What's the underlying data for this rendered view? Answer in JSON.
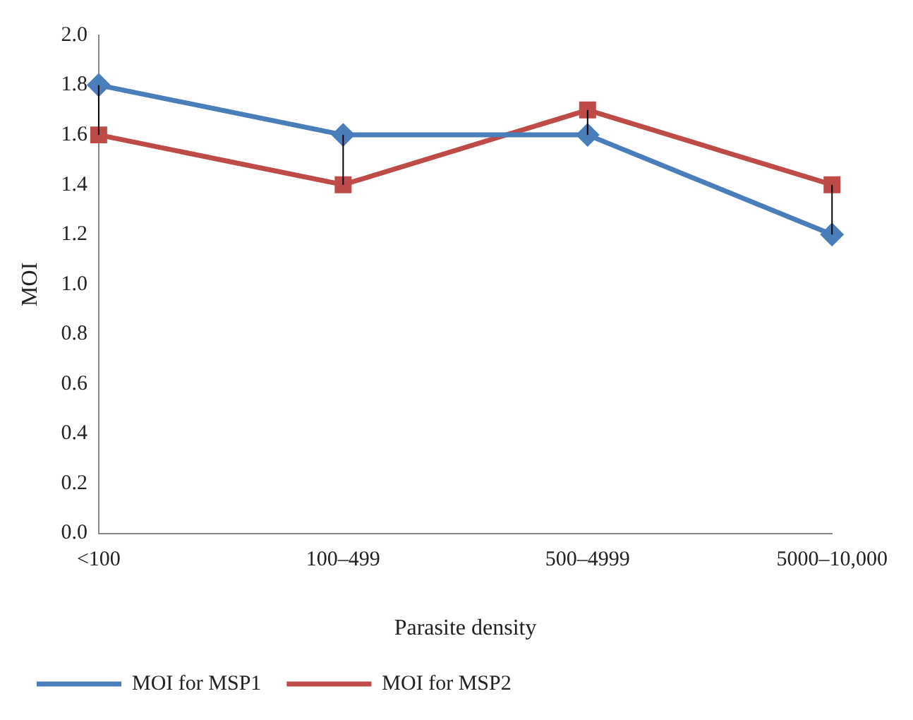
{
  "chart_data": {
    "type": "line",
    "xlabel": "Parasite density",
    "ylabel": "MOI",
    "categories": [
      "<100",
      "100–499",
      "500–4999",
      "5000–10,000"
    ],
    "series": [
      {
        "name": "MOI for MSP1",
        "color": "#4a7ebb",
        "values": [
          1.8,
          1.6,
          1.6,
          1.2
        ],
        "marker": "diamond",
        "errors": [
          [
            1.6,
            1.8
          ],
          [
            1.4,
            1.6
          ],
          [
            1.6,
            1.7
          ],
          [
            1.2,
            1.4
          ]
        ]
      },
      {
        "name": "MOI for MSP2",
        "color": "#be4b48",
        "values": [
          1.6,
          1.4,
          1.7,
          1.4
        ],
        "marker": "square"
      }
    ],
    "ylim": [
      0,
      2
    ],
    "yticks": [
      {
        "value": 0,
        "label": "0.0"
      },
      0.2,
      0.4,
      0.6,
      0.8,
      {
        "value": 1,
        "label": "1.0"
      },
      1.2,
      1.4,
      1.6,
      1.8,
      {
        "value": 2,
        "label": "2.0"
      }
    ],
    "grid": false,
    "legend": "bottom left"
  }
}
